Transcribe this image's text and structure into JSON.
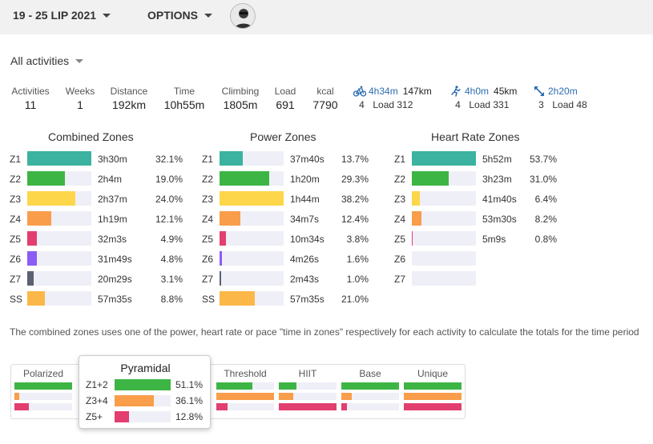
{
  "topbar": {
    "date_range": "19 - 25 LIP 2021",
    "options_label": "OPTIONS"
  },
  "filter": {
    "label": "All activities"
  },
  "stats": [
    {
      "label": "Activities",
      "value": "11"
    },
    {
      "label": "Weeks",
      "value": "1"
    },
    {
      "label": "Distance",
      "value": "192km"
    },
    {
      "label": "Time",
      "value": "10h55m"
    },
    {
      "label": "Climbing",
      "value": "1805m"
    },
    {
      "label": "Load",
      "value": "691"
    },
    {
      "label": "kcal",
      "value": "7790"
    }
  ],
  "sports": [
    {
      "icon": "bike-icon",
      "time": "4h34m",
      "distance": "147km",
      "count": "4",
      "load": "Load 312"
    },
    {
      "icon": "run-icon",
      "time": "4h0m",
      "distance": "45km",
      "count": "4",
      "load": "Load 331"
    },
    {
      "icon": "expand-arrows-icon",
      "time": "2h20m",
      "distance": "",
      "count": "3",
      "load": "Load 48"
    }
  ],
  "zones": {
    "combined": {
      "title": "Combined Zones",
      "rows": [
        {
          "zone": "Z1",
          "time": "3h30m",
          "percent": "32.1%",
          "fill": 1.0,
          "color": "#3bb3a0"
        },
        {
          "zone": "Z2",
          "time": "2h4m",
          "percent": "19.0%",
          "fill": 0.59,
          "color": "#3db544"
        },
        {
          "zone": "Z3",
          "time": "2h37m",
          "percent": "24.0%",
          "fill": 0.75,
          "color": "#fdd64a"
        },
        {
          "zone": "Z4",
          "time": "1h19m",
          "percent": "12.1%",
          "fill": 0.38,
          "color": "#f99d4b"
        },
        {
          "zone": "Z5",
          "time": "32m3s",
          "percent": "4.9%",
          "fill": 0.15,
          "color": "#e23e6f"
        },
        {
          "zone": "Z6",
          "time": "31m49s",
          "percent": "4.8%",
          "fill": 0.15,
          "color": "#8b5cf6"
        },
        {
          "zone": "Z7",
          "time": "20m29s",
          "percent": "3.1%",
          "fill": 0.1,
          "color": "#5b6170"
        },
        {
          "zone": "SS",
          "time": "57m35s",
          "percent": "8.8%",
          "fill": 0.27,
          "color": "#fbb848"
        }
      ]
    },
    "power": {
      "title": "Power Zones",
      "rows": [
        {
          "zone": "Z1",
          "time": "37m40s",
          "percent": "13.7%",
          "fill": 0.36,
          "color": "#3bb3a0"
        },
        {
          "zone": "Z2",
          "time": "1h20m",
          "percent": "29.3%",
          "fill": 0.77,
          "color": "#3db544"
        },
        {
          "zone": "Z3",
          "time": "1h44m",
          "percent": "38.2%",
          "fill": 1.0,
          "color": "#fdd64a"
        },
        {
          "zone": "Z4",
          "time": "34m7s",
          "percent": "12.4%",
          "fill": 0.32,
          "color": "#f99d4b"
        },
        {
          "zone": "Z5",
          "time": "10m34s",
          "percent": "3.8%",
          "fill": 0.1,
          "color": "#e23e6f"
        },
        {
          "zone": "Z6",
          "time": "4m26s",
          "percent": "1.6%",
          "fill": 0.04,
          "color": "#8b5cf6"
        },
        {
          "zone": "Z7",
          "time": "2m43s",
          "percent": "1.0%",
          "fill": 0.026,
          "color": "#5b6170"
        },
        {
          "zone": "SS",
          "time": "57m35s",
          "percent": "21.0%",
          "fill": 0.55,
          "color": "#fbb848"
        }
      ]
    },
    "heart_rate": {
      "title": "Heart Rate Zones",
      "rows": [
        {
          "zone": "Z1",
          "time": "5h52m",
          "percent": "53.7%",
          "fill": 1.0,
          "color": "#3bb3a0"
        },
        {
          "zone": "Z2",
          "time": "3h23m",
          "percent": "31.0%",
          "fill": 0.58,
          "color": "#3db544"
        },
        {
          "zone": "Z3",
          "time": "41m40s",
          "percent": "6.4%",
          "fill": 0.12,
          "color": "#fdd64a"
        },
        {
          "zone": "Z4",
          "time": "53m30s",
          "percent": "8.2%",
          "fill": 0.15,
          "color": "#f99d4b"
        },
        {
          "zone": "Z5",
          "time": "5m9s",
          "percent": "0.8%",
          "fill": 0.015,
          "color": "#e23e6f"
        },
        {
          "zone": "Z6",
          "time": "",
          "percent": "",
          "fill": 0,
          "color": "#8b5cf6"
        },
        {
          "zone": "Z7",
          "time": "",
          "percent": "",
          "fill": 0,
          "color": "#5b6170"
        }
      ]
    }
  },
  "note": "The combined zones uses one of the power, heart rate or pace \"time in zones\" respectively for each activity to calculate the totals for the time period",
  "distribution": {
    "colors": [
      "#3db544",
      "#f99d4b",
      "#e23e6f"
    ],
    "columns": [
      {
        "name": "Polarized",
        "fills": [
          1.0,
          0.08,
          0.25
        ]
      },
      {
        "name": "Pyramidal",
        "fills": [
          0.75,
          0.55,
          0.2
        ]
      },
      {
        "name": "Threshold",
        "fills": [
          0.62,
          1.0,
          0.2
        ]
      },
      {
        "name": "HIIT",
        "fills": [
          0.3,
          0.25,
          1.0
        ]
      },
      {
        "name": "Base",
        "fills": [
          1.0,
          0.18,
          0.1
        ]
      },
      {
        "name": "Unique",
        "fills": [
          1.0,
          1.0,
          1.0
        ]
      }
    ]
  },
  "popup": {
    "title": "Pyramidal",
    "rows": [
      {
        "label": "Z1+2",
        "percent": "51.1%",
        "fill": 1.0,
        "color": "#3db544"
      },
      {
        "label": "Z3+4",
        "percent": "36.1%",
        "fill": 0.7,
        "color": "#f99d4b"
      },
      {
        "label": "Z5+",
        "percent": "12.8%",
        "fill": 0.25,
        "color": "#e23e6f"
      }
    ]
  }
}
